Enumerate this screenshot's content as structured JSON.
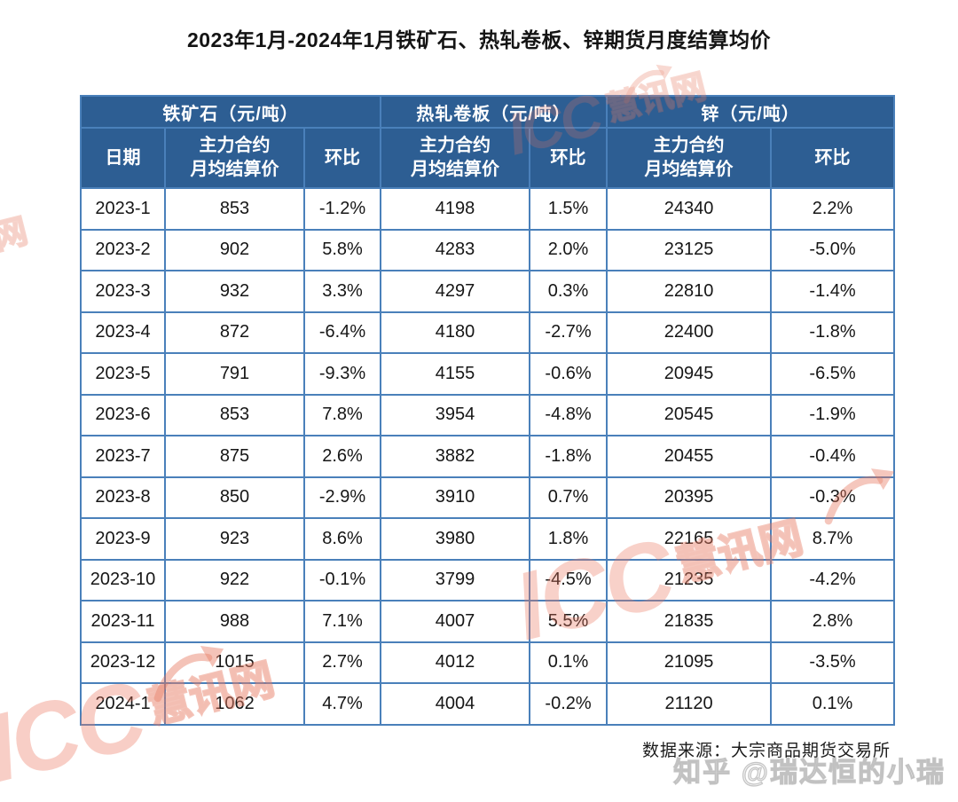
{
  "page": {
    "title": "2023年1月-2024年1月铁矿石、热轧卷板、锌期货月度结算均价",
    "source_note": "数据来源：大宗商品期货交易所"
  },
  "table": {
    "group_headers": [
      {
        "label": "铁矿石（元/吨）"
      },
      {
        "label": "热轧卷板（元/吨）"
      },
      {
        "label": "锌（元/吨）"
      }
    ],
    "column_headers": [
      "日期",
      "主力合约\n月均结算价",
      "环比",
      "主力合约\n月均结算价",
      "环比",
      "主力合约\n月均结算价",
      "环比"
    ],
    "rows": [
      [
        "2023-1",
        "853",
        "-1.2%",
        "4198",
        "1.5%",
        "24340",
        "2.2%"
      ],
      [
        "2023-2",
        "902",
        "5.8%",
        "4283",
        "2.0%",
        "23125",
        "-5.0%"
      ],
      [
        "2023-3",
        "932",
        "3.3%",
        "4297",
        "0.3%",
        "22810",
        "-1.4%"
      ],
      [
        "2023-4",
        "872",
        "-6.4%",
        "4180",
        "-2.7%",
        "22400",
        "-1.8%"
      ],
      [
        "2023-5",
        "791",
        "-9.3%",
        "4155",
        "-0.6%",
        "20945",
        "-6.5%"
      ],
      [
        "2023-6",
        "853",
        "7.8%",
        "3954",
        "-4.8%",
        "20545",
        "-1.9%"
      ],
      [
        "2023-7",
        "875",
        "2.6%",
        "3882",
        "-1.8%",
        "20455",
        "-0.4%"
      ],
      [
        "2023-8",
        "850",
        "-2.9%",
        "3910",
        "0.7%",
        "20395",
        "-0.3%"
      ],
      [
        "2023-9",
        "923",
        "8.6%",
        "3980",
        "1.8%",
        "22165",
        "8.7%"
      ],
      [
        "2023-10",
        "922",
        "-0.1%",
        "3799",
        "-4.5%",
        "21235",
        "-4.2%"
      ],
      [
        "2023-11",
        "988",
        "7.1%",
        "4007",
        "5.5%",
        "21835",
        "2.8%"
      ],
      [
        "2023-12",
        "1015",
        "2.7%",
        "4012",
        "0.1%",
        "21095",
        "-3.5%"
      ],
      [
        "2024-1",
        "1062",
        "4.7%",
        "4004",
        "-0.2%",
        "21120",
        "0.1%"
      ]
    ]
  },
  "watermarks": {
    "icc_text_latin": "ICC",
    "icc_text_cjk": "慧讯网",
    "zhihu": "知乎 @瑞达恒的小瑞"
  },
  "colors": {
    "header_bg": "#2d5e93",
    "grid_line": "#4a80ba",
    "header_text": "#ffffff",
    "body_text": "#161616",
    "watermark_pink": "#e8785f",
    "watermark_gray": "#bbbbbb"
  },
  "chart_data": {
    "type": "table",
    "title": "2023年1月-2024年1月铁矿石、热轧卷板、锌期货月度结算均价",
    "categories": [
      "2023-1",
      "2023-2",
      "2023-3",
      "2023-4",
      "2023-5",
      "2023-6",
      "2023-7",
      "2023-8",
      "2023-9",
      "2023-10",
      "2023-11",
      "2023-12",
      "2024-1"
    ],
    "series": [
      {
        "name": "铁矿石主力合约月均结算价（元/吨）",
        "values": [
          853,
          902,
          932,
          872,
          791,
          853,
          875,
          850,
          923,
          922,
          988,
          1015,
          1062
        ]
      },
      {
        "name": "铁矿石环比",
        "values": [
          "-1.2%",
          "5.8%",
          "3.3%",
          "-6.4%",
          "-9.3%",
          "7.8%",
          "2.6%",
          "-2.9%",
          "8.6%",
          "-0.1%",
          "7.1%",
          "2.7%",
          "4.7%"
        ]
      },
      {
        "name": "热轧卷板主力合约月均结算价（元/吨）",
        "values": [
          4198,
          4283,
          4297,
          4180,
          4155,
          3954,
          3882,
          3910,
          3980,
          3799,
          4007,
          4012,
          4004
        ]
      },
      {
        "name": "热轧卷板环比",
        "values": [
          "1.5%",
          "2.0%",
          "0.3%",
          "-2.7%",
          "-0.6%",
          "-4.8%",
          "-1.8%",
          "0.7%",
          "1.8%",
          "-4.5%",
          "5.5%",
          "0.1%",
          "-0.2%"
        ]
      },
      {
        "name": "锌主力合约月均结算价（元/吨）",
        "values": [
          24340,
          23125,
          22810,
          22400,
          20945,
          20545,
          20455,
          20395,
          22165,
          21235,
          21835,
          21095,
          21120
        ]
      },
      {
        "name": "锌环比",
        "values": [
          "2.2%",
          "-5.0%",
          "-1.4%",
          "-1.8%",
          "-6.5%",
          "-1.9%",
          "-0.4%",
          "-0.3%",
          "8.7%",
          "-4.2%",
          "2.8%",
          "-3.5%",
          "0.1%"
        ]
      }
    ],
    "source_note": "数据来源：大宗商品期货交易所"
  }
}
